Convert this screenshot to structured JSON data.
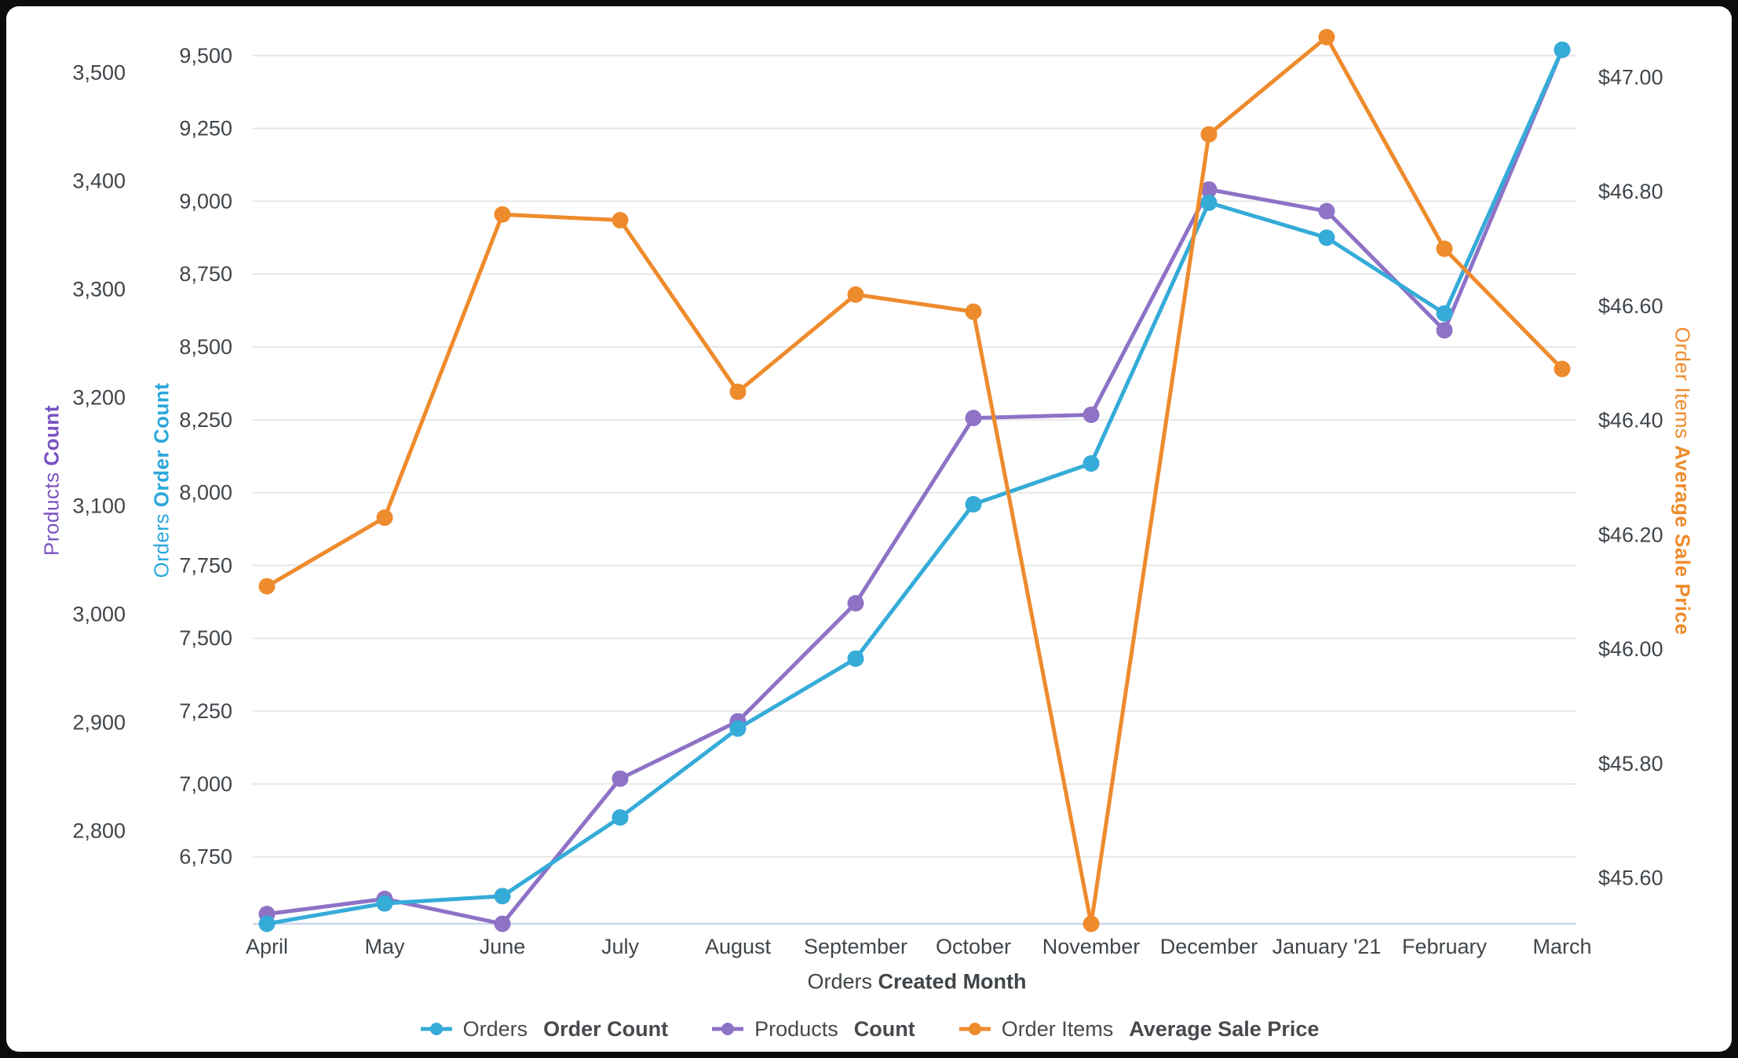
{
  "page": {
    "background_color": "#0b0c0d",
    "card_background_color": "#ffffff"
  },
  "chart_data": {
    "type": "line",
    "x_axis": {
      "title_prefix": "Orders",
      "title_bold": "Created Month",
      "categories": [
        "April",
        "May",
        "June",
        "July",
        "August",
        "September",
        "October",
        "November",
        "December",
        "January '21",
        "February",
        "March"
      ]
    },
    "axes": {
      "products": {
        "title_prefix": "Products",
        "title_bold": "Count",
        "title_color": "#7A52C3",
        "ylim": [
          2714,
          3538
        ],
        "tick_values": [
          2800,
          2900,
          3000,
          3100,
          3200,
          3300,
          3400,
          3500
        ],
        "tick_labels": [
          "2,800",
          "2,900",
          "3,000",
          "3,100",
          "3,200",
          "3,300",
          "3,400",
          "3,500"
        ]
      },
      "orders": {
        "title_prefix": "Orders",
        "title_bold": "Order Count",
        "title_color": "#2BA7DB",
        "ylim": [
          6520,
          9583
        ],
        "tick_values": [
          6750,
          7000,
          7250,
          7500,
          7750,
          8000,
          8250,
          8500,
          8750,
          9000,
          9250,
          9500
        ],
        "tick_labels": [
          "6,750",
          "7,000",
          "7,250",
          "7,500",
          "7,750",
          "8,000",
          "8,250",
          "8,500",
          "8,750",
          "9,000",
          "9,250",
          "9,500"
        ]
      },
      "price": {
        "title_prefix": "Order Items",
        "title_bold": "Average Sale Price",
        "title_color": "#EE8B2D",
        "ylim": [
          45.52,
          47.08
        ],
        "tick_values": [
          45.6,
          45.8,
          46.0,
          46.2,
          46.4,
          46.6,
          46.8,
          47.0
        ],
        "tick_labels": [
          "$45.60",
          "$45.80",
          "$46.00",
          "$46.20",
          "$46.40",
          "$46.60",
          "$46.80",
          "$47.00"
        ]
      }
    },
    "series": [
      {
        "id": "orders",
        "legend_prefix": "Orders",
        "legend_bold": "Order Count",
        "color": "#35ABD8",
        "axis": "orders",
        "values": [
          6520,
          6590,
          6615,
          6885,
          7190,
          7430,
          7960,
          8100,
          8995,
          8875,
          8615,
          9520
        ]
      },
      {
        "id": "products",
        "legend_prefix": "Products",
        "legend_bold": "Count",
        "color": "#8E72C6",
        "axis": "products",
        "values": [
          2723,
          2737,
          2714,
          2848,
          2901,
          3010,
          3181,
          3184,
          3392,
          3372,
          3262,
          3521
        ]
      },
      {
        "id": "price",
        "legend_prefix": "Order Items",
        "legend_bold": "Average Sale Price",
        "color": "#EE8B2D",
        "axis": "price",
        "values": [
          46.11,
          46.23,
          46.76,
          46.75,
          46.45,
          46.62,
          46.59,
          45.52,
          46.9,
          47.07,
          46.7,
          46.49
        ]
      }
    ],
    "grid": true,
    "legend_position": "bottom",
    "styles": {
      "grid_color": "#E7E7E7",
      "axis_line_color": "#CCD6EB",
      "tick_text_color": "#40464B"
    }
  }
}
